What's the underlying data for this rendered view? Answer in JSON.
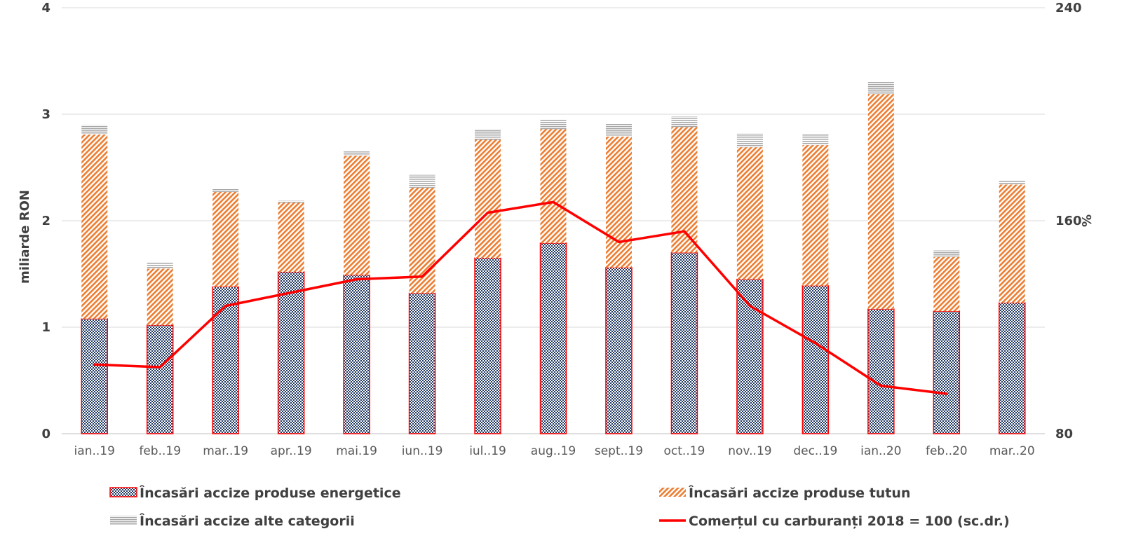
{
  "chart_data": {
    "type": "bar",
    "stacked": true,
    "categories": [
      "ian..19",
      "feb..19",
      "mar..19",
      "apr..19",
      "mai.19",
      "iun..19",
      "iul..19",
      "aug..19",
      "sept..19",
      "oct..19",
      "nov..19",
      "dec..19",
      "ian..20",
      "feb..20",
      "mar..20"
    ],
    "ylabel": "miliarde RON",
    "y2label": "%",
    "ylim": [
      0,
      4
    ],
    "yticks": [
      0,
      1,
      2,
      3,
      4
    ],
    "y2lim": [
      80,
      240
    ],
    "y2ticks": [
      80,
      160,
      240
    ],
    "grid": true,
    "legend_position": "bottom",
    "series": [
      {
        "name": "Încasări accize produse energetice",
        "kind": "bar",
        "pattern": "checker",
        "color": "#1f3864",
        "border": "#ff0000",
        "values": [
          1.08,
          1.02,
          1.38,
          1.52,
          1.49,
          1.32,
          1.65,
          1.79,
          1.56,
          1.7,
          1.45,
          1.39,
          1.17,
          1.15,
          1.23
        ]
      },
      {
        "name": "Încasări accize produse tutun",
        "kind": "bar",
        "pattern": "diagonal",
        "color": "#ed7d31",
        "values": [
          1.73,
          0.53,
          0.89,
          0.65,
          1.12,
          0.99,
          1.11,
          1.07,
          1.23,
          1.18,
          1.24,
          1.32,
          2.02,
          0.51,
          1.11
        ]
      },
      {
        "name": "Încasări accize alte categorii",
        "kind": "bar",
        "pattern": "horizontal",
        "color": "#a6a6a6",
        "values": [
          0.09,
          0.06,
          0.03,
          0.02,
          0.04,
          0.12,
          0.1,
          0.09,
          0.12,
          0.1,
          0.13,
          0.1,
          0.12,
          0.06,
          0.04
        ]
      },
      {
        "name": "Comerțul cu carburanți 2018 = 100 (sc.dr.)",
        "kind": "line",
        "axis": "right",
        "color": "#ff0000",
        "values": [
          106,
          105,
          128,
          133,
          138,
          139,
          163,
          167,
          152,
          156,
          128,
          114,
          98,
          95,
          null
        ]
      }
    ]
  }
}
